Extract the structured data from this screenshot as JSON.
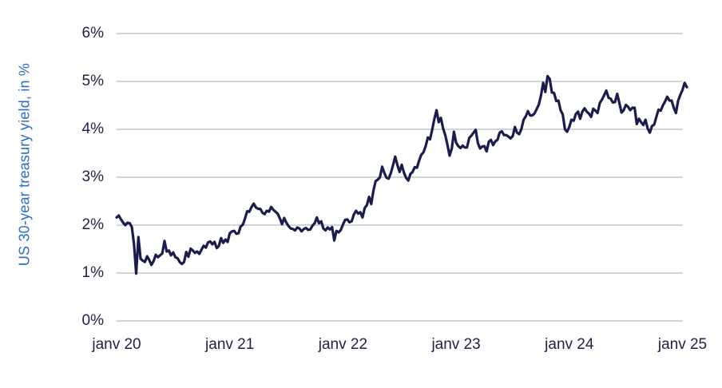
{
  "chart": {
    "y_axis_title": "US 30-year treasury yield, in %",
    "colors": {
      "line": "#1b1c4d",
      "grid": "#b2bcc6",
      "tick_text": "#1f2145",
      "y_title_text": "#2c6dc5",
      "background": "#ffffff"
    }
  },
  "chart_data": {
    "type": "line",
    "title": "",
    "xlabel": "",
    "ylabel": "US 30-year treasury yield, in %",
    "legend": "none",
    "grid": "horizontal",
    "ylim": [
      0,
      6
    ],
    "y_ticks": [
      0,
      1,
      2,
      3,
      4,
      5,
      6
    ],
    "y_tick_labels": [
      "0%",
      "1%",
      "2%",
      "3%",
      "4%",
      "5%",
      "6%"
    ],
    "x_tick_years": [
      2020,
      2021,
      2022,
      2023,
      2024,
      2025
    ],
    "x_tick_labels": [
      "janv 20",
      "janv 21",
      "janv 22",
      "janv 23",
      "janv 24",
      "janv 25"
    ],
    "series": [
      {
        "name": "US 30-year treasury yield",
        "x_start_year": 2020.0,
        "x_step_years": 0.019231,
        "unit": "percent",
        "values": [
          2.16,
          2.2,
          2.12,
          2.05,
          2.0,
          2.05,
          2.04,
          1.96,
          1.6,
          0.99,
          1.75,
          1.3,
          1.26,
          1.23,
          1.35,
          1.27,
          1.17,
          1.25,
          1.38,
          1.33,
          1.37,
          1.41,
          1.67,
          1.45,
          1.47,
          1.37,
          1.43,
          1.33,
          1.31,
          1.23,
          1.19,
          1.23,
          1.44,
          1.34,
          1.51,
          1.47,
          1.42,
          1.45,
          1.4,
          1.49,
          1.57,
          1.53,
          1.64,
          1.66,
          1.6,
          1.65,
          1.52,
          1.57,
          1.73,
          1.63,
          1.7,
          1.65,
          1.83,
          1.87,
          1.88,
          1.82,
          1.83,
          1.97,
          2.01,
          2.14,
          2.29,
          2.28,
          2.38,
          2.45,
          2.37,
          2.34,
          2.34,
          2.26,
          2.23,
          2.3,
          2.28,
          2.38,
          2.32,
          2.28,
          2.24,
          2.14,
          2.02,
          2.15,
          2.05,
          1.98,
          1.93,
          1.92,
          1.89,
          1.95,
          1.93,
          1.87,
          1.92,
          1.94,
          1.9,
          1.91,
          1.99,
          2.04,
          2.16,
          2.04,
          2.08,
          1.93,
          1.89,
          1.95,
          1.91,
          1.96,
          1.68,
          1.88,
          1.85,
          1.9,
          2.01,
          2.11,
          2.12,
          2.06,
          2.08,
          2.22,
          2.3,
          2.24,
          2.27,
          2.16,
          2.36,
          2.42,
          2.59,
          2.44,
          2.72,
          2.92,
          2.95,
          3.0,
          3.22,
          3.09,
          2.99,
          2.97,
          3.09,
          3.25,
          3.43,
          3.26,
          3.11,
          3.26,
          3.1,
          2.99,
          2.93,
          3.07,
          3.11,
          3.21,
          3.2,
          3.35,
          3.47,
          3.52,
          3.65,
          3.83,
          3.79,
          3.99,
          4.22,
          4.4,
          4.15,
          4.24,
          4.02,
          3.88,
          3.68,
          3.45,
          3.6,
          3.95,
          3.72,
          3.65,
          3.61,
          3.66,
          3.62,
          3.62,
          3.82,
          3.87,
          3.93,
          3.99,
          3.71,
          3.6,
          3.64,
          3.65,
          3.54,
          3.74,
          3.78,
          3.67,
          3.75,
          3.78,
          3.93,
          3.96,
          3.88,
          3.88,
          3.85,
          3.81,
          3.86,
          4.05,
          3.93,
          3.9,
          4.01,
          4.2,
          4.27,
          4.38,
          4.29,
          4.29,
          4.33,
          4.42,
          4.52,
          4.71,
          4.97,
          4.78,
          5.11,
          5.05,
          4.77,
          4.76,
          4.59,
          4.6,
          4.4,
          4.31,
          4.0,
          3.95,
          4.05,
          4.2,
          4.18,
          4.32,
          4.37,
          4.22,
          4.37,
          4.44,
          4.37,
          4.33,
          4.26,
          4.43,
          4.39,
          4.34,
          4.55,
          4.62,
          4.71,
          4.81,
          4.66,
          4.64,
          4.56,
          4.57,
          4.74,
          4.55,
          4.35,
          4.4,
          4.51,
          4.47,
          4.4,
          4.45,
          4.45,
          4.11,
          4.22,
          4.15,
          4.09,
          4.2,
          4.02,
          3.93,
          4.07,
          4.1,
          4.26,
          4.41,
          4.39,
          4.5,
          4.58,
          4.68,
          4.6,
          4.6,
          4.45,
          4.34,
          4.6,
          4.72,
          4.82,
          4.97,
          4.88
        ]
      }
    ]
  }
}
